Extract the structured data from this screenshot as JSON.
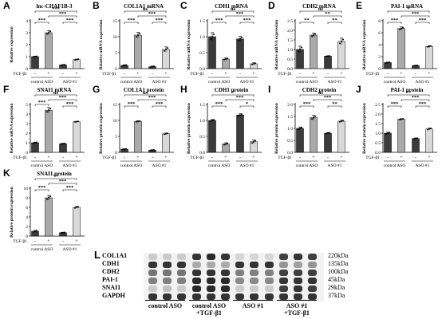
{
  "panels": [
    {
      "letter": "A",
      "title": "lnc-CHAF1B-3",
      "ylabel": "Relative expression",
      "ymax": 4,
      "ticks": [
        0,
        1,
        2,
        3,
        4
      ],
      "values": [
        1.0,
        3.0,
        0.3,
        0.75
      ],
      "errors": [
        0.04,
        0.18,
        0.04,
        0.05
      ],
      "sig": [
        "***",
        "***",
        "***",
        "***"
      ]
    },
    {
      "letter": "B",
      "title": "COL1A1 mRNA",
      "ylabel": "Relative mRNA expression",
      "ymax": 15,
      "ticks": [
        0,
        5,
        10,
        15
      ],
      "values": [
        1.0,
        10.5,
        0.6,
        6.0
      ],
      "errors": [
        0.2,
        0.9,
        0.2,
        0.8
      ],
      "sig": [
        "***",
        "ns",
        "***",
        "***"
      ]
    },
    {
      "letter": "C",
      "title": "CDH1 mRNA",
      "ylabel": "Relative mRNA expression",
      "ymax": 1.5,
      "ticks": [
        0.0,
        0.5,
        1.0,
        1.5
      ],
      "values": [
        1.0,
        0.3,
        0.93,
        0.15
      ],
      "errors": [
        0.13,
        0.03,
        0.08,
        0.03
      ],
      "sig": [
        "***",
        "ns",
        "***",
        "***"
      ]
    },
    {
      "letter": "D",
      "title": "CDH2 mRNA",
      "ylabel": "Relative mRNA expression",
      "ymax": 2.5,
      "ticks": [
        0.0,
        0.5,
        1.0,
        1.5,
        2.0,
        2.5
      ],
      "values": [
        1.0,
        1.75,
        0.65,
        1.42
      ],
      "errors": [
        0.17,
        0.1,
        0.02,
        0.17
      ],
      "sig": [
        "**",
        "ns",
        "**",
        "**"
      ]
    },
    {
      "letter": "E",
      "title": "PAI-1 mRNA",
      "ylabel": "Relative mRNA expression",
      "ymax": 8,
      "ticks": [
        0,
        2,
        4,
        6,
        8
      ],
      "values": [
        1.0,
        6.7,
        0.5,
        3.7
      ],
      "errors": [
        0.08,
        0.25,
        0.05,
        0.12
      ],
      "sig": [
        "***",
        "*",
        "***",
        "***"
      ]
    },
    {
      "letter": "F",
      "title": "SNAI1 mRNA",
      "ylabel": "Relative mRNA expression",
      "ymax": 5,
      "ticks": [
        0,
        1,
        2,
        3,
        4,
        5
      ],
      "values": [
        1.0,
        4.4,
        0.9,
        3.2
      ],
      "errors": [
        0.07,
        0.28,
        0.05,
        0.04
      ],
      "sig": [
        "***",
        "ns",
        "***",
        "***"
      ]
    },
    {
      "letter": "G",
      "title": "COL1A1 protein",
      "ylabel": "Relative protein expression",
      "ymax": 15,
      "ticks": [
        0,
        5,
        10,
        15
      ],
      "values": [
        1.0,
        9.7,
        0.7,
        5.8
      ],
      "errors": [
        0.1,
        0.2,
        0.1,
        0.25
      ],
      "sig": [
        "***",
        "ns",
        "***",
        "***"
      ]
    },
    {
      "letter": "H",
      "title": "CDH1 protein",
      "ylabel": "Relative protein expression",
      "ymax": 1.5,
      "ticks": [
        0.0,
        0.5,
        1.0,
        1.5
      ],
      "values": [
        1.0,
        0.26,
        1.17,
        0.33
      ],
      "errors": [
        0.03,
        0.04,
        0.04,
        0.06
      ],
      "sig": [
        "***",
        "*",
        "***",
        "*"
      ]
    },
    {
      "letter": "I",
      "title": "CDH2 protein",
      "ylabel": "Relative protein expression",
      "ymax": 2.0,
      "ticks": [
        0.0,
        0.5,
        1.0,
        1.5,
        2.0
      ],
      "values": [
        1.0,
        1.45,
        0.8,
        1.3
      ],
      "errors": [
        0.06,
        0.1,
        0.03,
        0.04
      ],
      "sig": [
        "***",
        "ns",
        "***",
        "**"
      ]
    },
    {
      "letter": "J",
      "title": "PAI-1 protein",
      "ylabel": "Relative protein expression",
      "ymax": 2.5,
      "ticks": [
        0.0,
        0.5,
        1.0,
        1.5,
        2.0,
        2.5
      ],
      "values": [
        1.0,
        1.73,
        0.72,
        1.22
      ],
      "errors": [
        0.05,
        0.03,
        0.03,
        0.05
      ],
      "sig": [
        "***",
        "**",
        "***",
        "***"
      ]
    },
    {
      "letter": "K",
      "title": "SNAI1 protein",
      "ylabel": "Relative protein expression",
      "ymax": 10,
      "ticks": [
        0,
        2,
        4,
        6,
        8,
        10
      ],
      "values": [
        1.0,
        8.0,
        0.7,
        6.0
      ],
      "errors": [
        0.2,
        0.5,
        0.1,
        0.2
      ],
      "sig": [
        "***",
        "**",
        "***",
        "***"
      ]
    }
  ],
  "common": {
    "tgf_label": "TGF-β1",
    "tgf_signs": [
      "-",
      "+",
      "-",
      "+"
    ],
    "group_labels": [
      "control ASO",
      "ASO #1"
    ]
  },
  "western": {
    "letter": "L",
    "rows": [
      {
        "name": "COL1A1",
        "kda": "220kDa"
      },
      {
        "name": "CDH1",
        "kda": "135kDa"
      },
      {
        "name": "CDH2",
        "kda": "100kDa"
      },
      {
        "name": "PAI-1",
        "kda": "45kDa"
      },
      {
        "name": "SNAI1",
        "kda": "29kDa"
      },
      {
        "name": "GAPDH",
        "kda": "37kDa"
      }
    ],
    "groups": [
      "control ASO",
      "control ASO\n+TGF-β1",
      "ASO #1",
      "ASO #1\n+TGF-β1"
    ],
    "intensity": [
      [
        0.15,
        0.15,
        0.15,
        0.85,
        0.9,
        0.85,
        0.1,
        0.1,
        0.1,
        0.8,
        0.85,
        0.8
      ],
      [
        0.85,
        0.85,
        0.85,
        0.3,
        0.3,
        0.3,
        0.85,
        0.85,
        0.85,
        0.4,
        0.35,
        0.4
      ],
      [
        0.55,
        0.55,
        0.55,
        0.85,
        0.85,
        0.85,
        0.5,
        0.5,
        0.5,
        0.8,
        0.8,
        0.8
      ],
      [
        0.5,
        0.5,
        0.5,
        0.9,
        0.9,
        0.9,
        0.45,
        0.45,
        0.45,
        0.85,
        0.85,
        0.85
      ],
      [
        0.15,
        0.2,
        0.15,
        0.9,
        0.9,
        0.9,
        0.15,
        0.15,
        0.15,
        0.8,
        0.85,
        0.8
      ],
      [
        0.85,
        0.85,
        0.85,
        0.85,
        0.85,
        0.85,
        0.85,
        0.85,
        0.85,
        0.85,
        0.85,
        0.85
      ]
    ]
  },
  "colors": {
    "bar_dark": "#3b3b3b",
    "bar_mid": "#aaaaaa",
    "bar_light": "#d9d9d9"
  }
}
